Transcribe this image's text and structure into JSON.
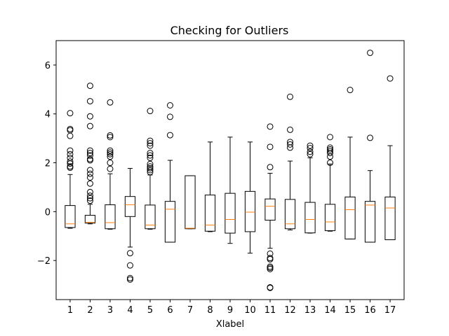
{
  "chart_data": {
    "type": "boxplot",
    "title": "Checking for Outliers",
    "xlabel": "Xlabel",
    "ylabel": "",
    "ylim": [
      -3.6,
      7.0
    ],
    "yticks": [
      -2,
      0,
      2,
      4,
      6
    ],
    "ytick_labels": [
      "−2",
      "0",
      "2",
      "4",
      "6"
    ],
    "categories": [
      "1",
      "2",
      "3",
      "4",
      "5",
      "6",
      "7",
      "8",
      "9",
      "10",
      "11",
      "12",
      "13",
      "14",
      "15",
      "16",
      "17"
    ],
    "grid": false,
    "colors": {
      "box": "#000000",
      "median": "#ff7f0e",
      "axes": "#000000",
      "background": "#ffffff"
    },
    "boxes": [
      {
        "label": "1",
        "whisker_low": -0.68,
        "q1": -0.65,
        "median": -0.5,
        "q3": 0.25,
        "whisker_high": 1.52,
        "fliers": [
          4.03,
          3.38,
          3.33,
          3.1,
          2.5,
          2.35,
          2.2,
          2.05,
          1.97,
          1.85,
          1.8
        ]
      },
      {
        "label": "2",
        "whisker_low": -0.5,
        "q1": -0.47,
        "median": -0.44,
        "q3": -0.15,
        "whisker_high": 0.3,
        "fliers": [
          5.15,
          4.52,
          3.9,
          3.5,
          2.5,
          2.4,
          2.3,
          2.15,
          2.1,
          1.7,
          1.55,
          1.4,
          1.15,
          0.8,
          0.65,
          0.55,
          0.45
        ]
      },
      {
        "label": "3",
        "whisker_low": -0.72,
        "q1": -0.7,
        "median": -0.45,
        "q3": 0.28,
        "whisker_high": 1.55,
        "fliers": [
          4.47,
          3.12,
          3.05,
          2.5,
          2.42,
          2.35,
          2.25,
          2.0,
          1.75
        ]
      },
      {
        "label": "4",
        "whisker_low": -1.45,
        "q1": -0.2,
        "median": 0.28,
        "q3": 0.62,
        "whisker_high": 1.77,
        "fliers": [
          -1.7,
          -2.2,
          -2.72,
          -2.78
        ]
      },
      {
        "label": "5",
        "whisker_low": -0.72,
        "q1": -0.7,
        "median": -0.55,
        "q3": 0.27,
        "whisker_high": 1.5,
        "fliers": [
          4.12,
          2.9,
          2.8,
          2.7,
          2.4,
          2.3,
          2.2,
          1.95,
          1.85,
          1.78,
          1.7,
          1.62
        ]
      },
      {
        "label": "6",
        "whisker_low": -1.25,
        "q1": -1.25,
        "median": 0.1,
        "q3": 0.42,
        "whisker_high": 2.1,
        "fliers": [
          4.35,
          3.88,
          3.13
        ]
      },
      {
        "label": "7",
        "whisker_low": -0.7,
        "q1": -0.7,
        "median": -0.68,
        "q3": 1.47,
        "whisker_high": 1.47,
        "fliers": []
      },
      {
        "label": "8",
        "whisker_low": -0.82,
        "q1": -0.8,
        "median": -0.55,
        "q3": 0.68,
        "whisker_high": 2.85,
        "fliers": []
      },
      {
        "label": "9",
        "whisker_low": -1.3,
        "q1": -0.88,
        "median": -0.32,
        "q3": 0.75,
        "whisker_high": 3.05,
        "fliers": []
      },
      {
        "label": "10",
        "whisker_low": -1.7,
        "q1": -0.82,
        "median": -0.02,
        "q3": 0.83,
        "whisker_high": 2.85,
        "fliers": []
      },
      {
        "label": "11",
        "whisker_low": -1.5,
        "q1": -0.35,
        "median": 0.22,
        "q3": 0.52,
        "whisker_high": 1.57,
        "fliers": [
          3.48,
          2.65,
          1.82,
          -1.72,
          -1.9,
          -1.95,
          -2.25,
          -2.3,
          -2.35,
          -3.1,
          -3.12
        ]
      },
      {
        "label": "12",
        "whisker_low": -0.75,
        "q1": -0.7,
        "median": -0.5,
        "q3": 0.5,
        "whisker_high": 2.07,
        "fliers": [
          4.7,
          3.35,
          2.85,
          2.75,
          2.62
        ]
      },
      {
        "label": "13",
        "whisker_low": -0.88,
        "q1": -0.87,
        "median": -0.32,
        "q3": 0.38,
        "whisker_high": 2.2,
        "fliers": [
          2.7,
          2.6,
          2.45,
          2.35
        ]
      },
      {
        "label": "14",
        "whisker_low": -0.8,
        "q1": -0.78,
        "median": -0.42,
        "q3": 0.3,
        "whisker_high": 1.95,
        "fliers": [
          3.05,
          2.62,
          2.55,
          2.48,
          2.4,
          2.25,
          2.0
        ]
      },
      {
        "label": "15",
        "whisker_low": -1.12,
        "q1": -1.12,
        "median": 0.08,
        "q3": 0.6,
        "whisker_high": 3.05,
        "fliers": [
          4.98
        ]
      },
      {
        "label": "16",
        "whisker_low": -1.25,
        "q1": -1.25,
        "median": 0.27,
        "q3": 0.42,
        "whisker_high": 1.68,
        "fliers": [
          6.5,
          3.02
        ]
      },
      {
        "label": "17",
        "whisker_low": -1.15,
        "q1": -1.15,
        "median": 0.15,
        "q3": 0.6,
        "whisker_high": 2.7,
        "fliers": [
          5.45
        ]
      }
    ]
  }
}
